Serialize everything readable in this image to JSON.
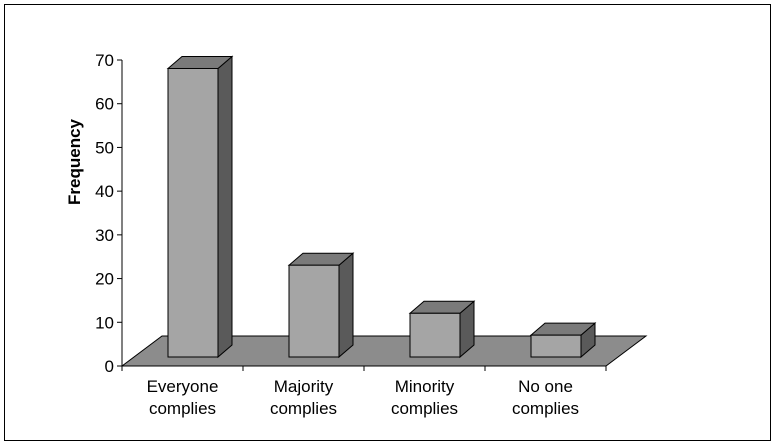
{
  "chart_data": {
    "type": "bar",
    "style": "3d-column",
    "title": "",
    "xlabel": "",
    "ylabel": "Frequency",
    "ylim": [
      0,
      70
    ],
    "yticks": [
      0,
      10,
      20,
      30,
      40,
      50,
      60,
      70
    ],
    "categories": [
      [
        "Everyone",
        "complies"
      ],
      [
        "Majority",
        "complies"
      ],
      [
        "Minority",
        "complies"
      ],
      [
        "No one",
        "complies"
      ]
    ],
    "values": [
      66,
      21,
      10,
      5
    ],
    "grid": false,
    "legend": "none",
    "colors": {
      "bar_front": "#a5a5a5",
      "bar_top": "#7a7a7a",
      "bar_side": "#5a5a5a",
      "floor": "#8c8c8c",
      "axis": "#000000",
      "outline": "#000000"
    }
  }
}
